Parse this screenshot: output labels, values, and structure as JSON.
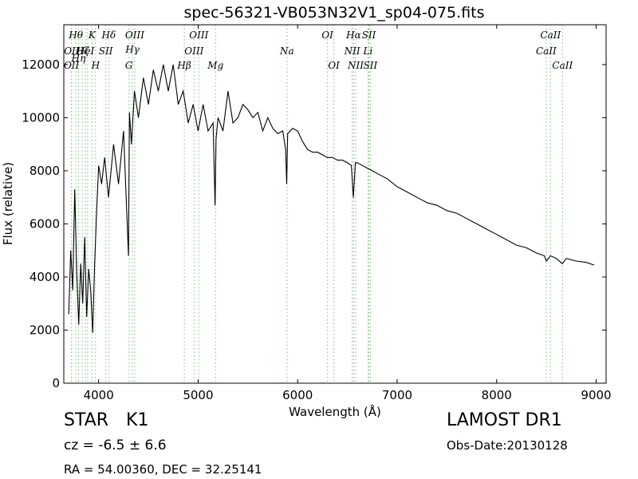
{
  "chart_data": {
    "type": "line",
    "title": "spec-56321-VB053N32V1_sp04-075.fits",
    "xlabel": "Wavelength (Å)",
    "ylabel": "Flux (relative)",
    "xlim": [
      3650,
      9100
    ],
    "ylim": [
      0,
      13500
    ],
    "xticks": [
      4000,
      5000,
      6000,
      7000,
      8000,
      9000
    ],
    "yticks": [
      0,
      2000,
      4000,
      6000,
      8000,
      10000,
      12000
    ],
    "grid": false,
    "line_color": "#000000",
    "marker_color": "#7fbf7f",
    "spectrum": {
      "x": [
        3700,
        3720,
        3740,
        3760,
        3780,
        3800,
        3820,
        3840,
        3860,
        3880,
        3900,
        3920,
        3940,
        3960,
        3980,
        4000,
        4030,
        4060,
        4100,
        4150,
        4200,
        4250,
        4300,
        4310,
        4330,
        4360,
        4400,
        4450,
        4500,
        4550,
        4600,
        4650,
        4700,
        4750,
        4800,
        4850,
        4900,
        4950,
        5000,
        5050,
        5100,
        5150,
        5170,
        5180,
        5200,
        5250,
        5300,
        5350,
        5400,
        5450,
        5500,
        5550,
        5600,
        5650,
        5700,
        5750,
        5800,
        5850,
        5880,
        5890,
        5900,
        5950,
        6000,
        6050,
        6100,
        6150,
        6200,
        6250,
        6300,
        6350,
        6400,
        6450,
        6500,
        6540,
        6560,
        6580,
        6600,
        6650,
        6700,
        6750,
        6800,
        6900,
        7000,
        7100,
        7200,
        7300,
        7400,
        7500,
        7600,
        7700,
        7800,
        7900,
        8000,
        8100,
        8200,
        8300,
        8400,
        8480,
        8500,
        8540,
        8600,
        8660,
        8700,
        8800,
        8900,
        8980
      ],
      "y": [
        2600,
        5000,
        3500,
        7300,
        4200,
        2200,
        4500,
        3000,
        5500,
        2500,
        4300,
        3500,
        1900,
        4500,
        6500,
        8200,
        7500,
        8500,
        7000,
        9000,
        7500,
        9500,
        4800,
        10200,
        9000,
        11000,
        10000,
        11500,
        10500,
        11800,
        11000,
        12000,
        11000,
        12000,
        10500,
        11000,
        9800,
        10500,
        9500,
        10500,
        9500,
        9800,
        6700,
        9200,
        10000,
        9500,
        11000,
        9800,
        10000,
        10500,
        10300,
        10000,
        10200,
        9500,
        10000,
        9600,
        9400,
        9500,
        8800,
        7500,
        9400,
        9600,
        9500,
        9100,
        8800,
        8700,
        8700,
        8600,
        8500,
        8500,
        8400,
        8400,
        8300,
        8200,
        7000,
        8300,
        8300,
        8200,
        8100,
        8000,
        7900,
        7700,
        7400,
        7200,
        7000,
        6800,
        6700,
        6500,
        6400,
        6200,
        6000,
        5800,
        5600,
        5400,
        5200,
        5100,
        4900,
        4800,
        4600,
        4800,
        4700,
        4500,
        4700,
        4600,
        4550,
        4450
      ]
    },
    "line_markers": [
      {
        "x": 3727,
        "label": "OII",
        "row": 2
      },
      {
        "x": 3729,
        "label": "OII",
        "row": 1
      },
      {
        "x": 3771,
        "label": "Hθ",
        "row": 0
      },
      {
        "x": 3798,
        "label": "Hη",
        "row": 1.5
      },
      {
        "x": 3835,
        "label": "Hζ",
        "row": 1
      },
      {
        "x": 3868,
        "label": "HeI",
        "row": 1
      },
      {
        "x": 3889,
        "label": "",
        "row": 0
      },
      {
        "x": 3934,
        "label": "K",
        "row": 0
      },
      {
        "x": 3969,
        "label": "H",
        "row": 2
      },
      {
        "x": 4072,
        "label": "SII",
        "row": 1
      },
      {
        "x": 4102,
        "label": "Hδ",
        "row": 0
      },
      {
        "x": 4305,
        "label": "G",
        "row": 2
      },
      {
        "x": 4340,
        "label": "Hγ",
        "row": 0.9
      },
      {
        "x": 4363,
        "label": "OIII",
        "row": 0
      },
      {
        "x": 4861,
        "label": "Hβ",
        "row": 2
      },
      {
        "x": 4959,
        "label": "OIII",
        "row": 1
      },
      {
        "x": 5007,
        "label": "OIII",
        "row": 0
      },
      {
        "x": 5175,
        "label": "Mg",
        "row": 2
      },
      {
        "x": 5893,
        "label": "Na",
        "row": 1
      },
      {
        "x": 6300,
        "label": "OI",
        "row": 0
      },
      {
        "x": 6364,
        "label": "OI",
        "row": 2
      },
      {
        "x": 6548,
        "label": "NII",
        "row": 1
      },
      {
        "x": 6563,
        "label": "Hα",
        "row": 0
      },
      {
        "x": 6583,
        "label": "NII",
        "row": 2
      },
      {
        "x": 6707,
        "label": "Li",
        "row": 1
      },
      {
        "x": 6716,
        "label": "SII",
        "row": 0
      },
      {
        "x": 6731,
        "label": "SII",
        "row": 2
      },
      {
        "x": 8498,
        "label": "CaII",
        "row": 1
      },
      {
        "x": 8542,
        "label": "CaII",
        "row": 0
      },
      {
        "x": 8662,
        "label": "CaII",
        "row": 2
      }
    ]
  },
  "info": {
    "class_label": "STAR",
    "subclass": "K1",
    "cz": "cz = -6.5 ± 6.6",
    "coords": "RA = 54.00360, DEC = 32.25141",
    "survey": "LAMOST DR1",
    "obs_date": "Obs-Date:20130128"
  }
}
